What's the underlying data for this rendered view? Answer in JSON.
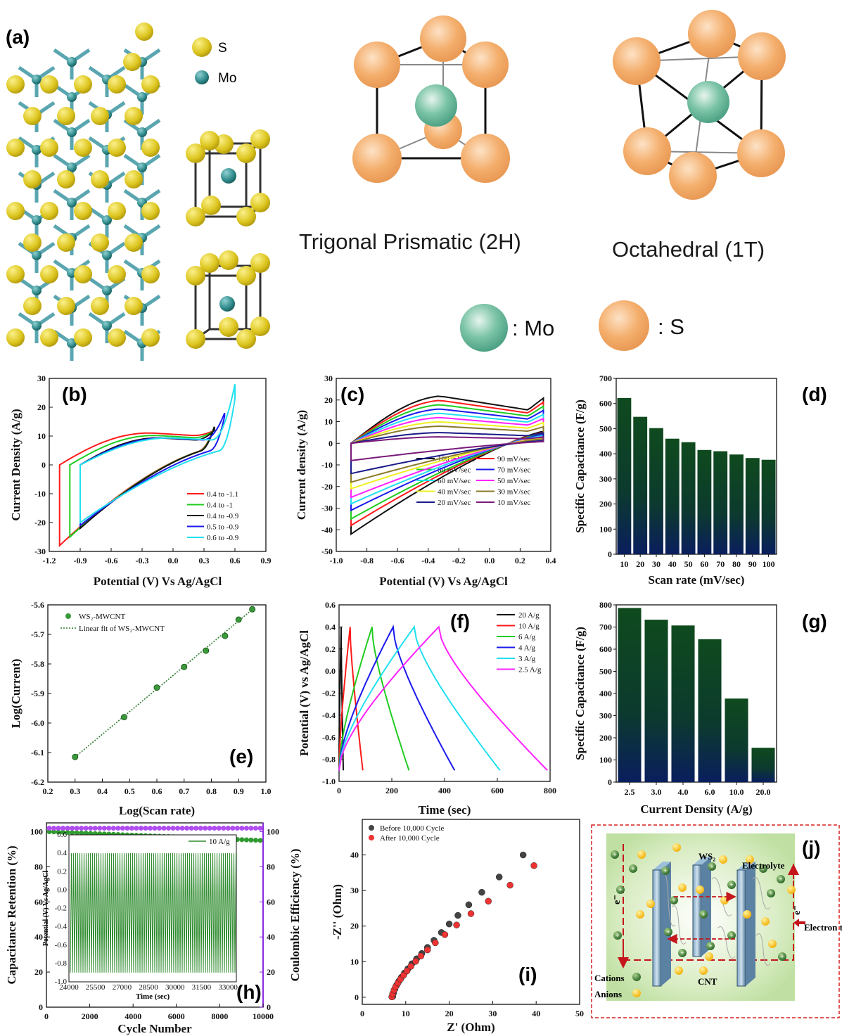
{
  "panel_a": {
    "tag": "(a)",
    "legend_s": "S",
    "legend_mo": "Mo",
    "trigonal_label": "Trigonal Prismatic (2H)",
    "octahedral_label": "Octahedral (1T)",
    "key_mo": ": Mo",
    "key_s": ": S",
    "colors": {
      "s_yellow": "#e2cf2a",
      "mo_teal": "#2f8a8a",
      "s_orange": "#f2ab68",
      "mo_green": "#5fb69a"
    }
  },
  "chart_data": [
    {
      "id": "b",
      "tag": "(b)",
      "type": "line",
      "xlabel": "Potential (V) Vs Ag/AgCl",
      "ylabel": "Current Density (A/g)",
      "xlim": [
        -1.2,
        0.9
      ],
      "ylim": [
        -30,
        30
      ],
      "xticks": [
        "-1.2",
        "-0.9",
        "-0.6",
        "-0.3",
        "0.0",
        "0.3",
        "0.6",
        "0.9"
      ],
      "yticks": [
        "-30",
        "-20",
        "-10",
        "0",
        "10",
        "20",
        "30"
      ],
      "series": [
        {
          "name": "0.4 to -1.1",
          "color": "#ff1a1a",
          "vmin": -1.1,
          "vmax": 0.4,
          "top": 13,
          "bottom": -28,
          "tail": 12
        },
        {
          "name": "0.4 to -1",
          "color": "#22cc22",
          "vmin": -1.0,
          "vmax": 0.4,
          "top": 12,
          "bottom": -25,
          "tail": 12
        },
        {
          "name": "0.4 to -0.9",
          "color": "#111111",
          "vmin": -0.9,
          "vmax": 0.4,
          "top": 11,
          "bottom": -22,
          "tail": 12
        },
        {
          "name": "0.5 to -0.9",
          "color": "#1a1aee",
          "vmin": -0.9,
          "vmax": 0.5,
          "top": 11,
          "bottom": -21,
          "tail": 18
        },
        {
          "name": "0.6 to -0.9",
          "color": "#22e0f0",
          "vmin": -0.9,
          "vmax": 0.6,
          "top": 11,
          "bottom": -20,
          "tail": 28
        }
      ]
    },
    {
      "id": "c",
      "tag": "(c)",
      "type": "line",
      "xlabel": "Potential (V) Vs Ag/AgCl",
      "ylabel": "Current density (A/g)",
      "xlim": [
        -1.0,
        0.45
      ],
      "ylim": [
        -50,
        30
      ],
      "xticks": [
        "-1.0",
        "-0.8",
        "-0.6",
        "-0.4",
        "-0.2",
        "0.0",
        "0.2",
        "0.4"
      ],
      "yticks": [
        "-50",
        "-40",
        "-30",
        "-20",
        "-10",
        "0",
        "10",
        "20",
        "30"
      ],
      "series": [
        {
          "name": "100 mV/sec",
          "color": "#111111",
          "top": 22,
          "bottom": -42
        },
        {
          "name": "90 mV/sec",
          "color": "#ff1a1a",
          "top": 20,
          "bottom": -38
        },
        {
          "name": "80 mV/sec",
          "color": "#22cc22",
          "top": 18,
          "bottom": -35
        },
        {
          "name": "70 mV/sec",
          "color": "#1a1aee",
          "top": 16,
          "bottom": -31
        },
        {
          "name": "60 mV/sec",
          "color": "#22e0f0",
          "top": 14,
          "bottom": -28
        },
        {
          "name": "50 mV/sec",
          "color": "#ff22ff",
          "top": 12,
          "bottom": -25
        },
        {
          "name": "40 mV/sec",
          "color": "#f0f020",
          "top": 10,
          "bottom": -21
        },
        {
          "name": "30 mV/sec",
          "color": "#8a7a2a",
          "top": 8,
          "bottom": -18
        },
        {
          "name": "20 mV/sec",
          "color": "#1a1a88",
          "top": 5,
          "bottom": -14
        },
        {
          "name": "10 mV/sec",
          "color": "#7a1a7a",
          "top": 3,
          "bottom": -8
        }
      ]
    },
    {
      "id": "d",
      "tag": "(d)",
      "type": "bar",
      "xlabel": "Scan rate (mV/sec)",
      "ylabel": "Specific Capacitance (F/g)",
      "ylim": [
        0,
        700
      ],
      "yticks": [
        "0",
        "100",
        "200",
        "300",
        "400",
        "500",
        "600",
        "700"
      ],
      "categories": [
        "10",
        "20",
        "30",
        "40",
        "50",
        "60",
        "70",
        "80",
        "90",
        "100"
      ],
      "values": [
        622,
        547,
        502,
        460,
        446,
        415,
        410,
        397,
        383,
        376
      ]
    },
    {
      "id": "e",
      "tag": "(e)",
      "type": "scatter",
      "xlabel": "Log(Scan rate)",
      "ylabel": "Log(Current)",
      "xlim": [
        0.2,
        1.0
      ],
      "ylim": [
        -6.2,
        -5.6
      ],
      "xticks": [
        "0.2",
        "0.3",
        "0.4",
        "0.5",
        "0.6",
        "0.7",
        "0.8",
        "0.9",
        "1.0"
      ],
      "yticks": [
        "-6.2",
        "-6.1",
        "-6.0",
        "-5.9",
        "-5.8",
        "-5.7",
        "-5.6"
      ],
      "legend": [
        "WS₂-MWCNT",
        "Linear fit of WS₂-MWCNT"
      ],
      "x": [
        0.3,
        0.48,
        0.6,
        0.7,
        0.78,
        0.85,
        0.9,
        0.95
      ],
      "y": [
        -6.115,
        -5.98,
        -5.88,
        -5.81,
        -5.755,
        -5.705,
        -5.65,
        -5.615
      ]
    },
    {
      "id": "f",
      "tag": "(f)",
      "type": "line",
      "xlabel": "Time (sec)",
      "ylabel": "Potential (V) vs Ag/AgCl",
      "xlim": [
        0,
        800
      ],
      "ylim": [
        -1.0,
        0.6
      ],
      "xticks": [
        "0",
        "200",
        "400",
        "600",
        "800"
      ],
      "yticks": [
        "-1.0",
        "-0.8",
        "-0.6",
        "-0.4",
        "-0.2",
        "0.0",
        "0.2",
        "0.4",
        "0.6"
      ],
      "series": [
        {
          "name": "20 A/g",
          "color": "#111111",
          "peak": 8,
          "end": 16
        },
        {
          "name": "10 A/g",
          "color": "#ff1a1a",
          "peak": 42,
          "end": 90
        },
        {
          "name": "6 A/g",
          "color": "#22cc22",
          "peak": 125,
          "end": 265
        },
        {
          "name": "4 A/g",
          "color": "#1a1aee",
          "peak": 205,
          "end": 438
        },
        {
          "name": "3 A/g",
          "color": "#22e0f0",
          "peak": 285,
          "end": 610
        },
        {
          "name": "2.5 A/g",
          "color": "#ff22ff",
          "peak": 378,
          "end": 790
        }
      ]
    },
    {
      "id": "g",
      "tag": "(g)",
      "type": "bar",
      "xlabel": "Current Density (A/g)",
      "ylabel": "Specific Capacitance (F/g)",
      "ylim": [
        0,
        800
      ],
      "yticks": [
        "0",
        "100",
        "200",
        "300",
        "400",
        "500",
        "600",
        "700",
        "800"
      ],
      "categories": [
        "2.5",
        "3.0",
        "4.0",
        "6.0",
        "10.0",
        "20.0"
      ],
      "values": [
        786,
        733,
        707,
        645,
        377,
        155
      ]
    },
    {
      "id": "h",
      "tag": "(h)",
      "type": "scatter",
      "xlabel": "Cycle Number",
      "ylabel": "Capacitance Retention (%)",
      "ylabel_right": "Coulombic Efficiency (%)",
      "xlim": [
        0,
        10000
      ],
      "ylim": [
        0,
        105
      ],
      "xticks": [
        "0",
        "2000",
        "4000",
        "6000",
        "8000",
        "10000"
      ],
      "yticks": [
        "0",
        "20",
        "40",
        "60",
        "80",
        "100"
      ],
      "yticks_right": [
        "0",
        "20",
        "40",
        "60",
        "80",
        "100"
      ],
      "retention_start": 100,
      "retention_end": 95,
      "efficiency": 100,
      "inset": {
        "xlabel": "Time (sec)",
        "ylabel": "Potential (V) Vs Ag/AgCl",
        "legend": "10 A/g",
        "xlim": [
          24000,
          33500
        ],
        "ylim": [
          -1.0,
          0.6
        ],
        "xticks": [
          "24000",
          "25500",
          "27000",
          "28500",
          "30000",
          "31500",
          "33000"
        ],
        "yticks": [
          "-1.0",
          "-0.8",
          "-0.6",
          "-0.4",
          "-0.2",
          "0.0",
          "0.2",
          "0.4",
          "0.6"
        ]
      }
    },
    {
      "id": "i",
      "tag": "(i)",
      "type": "scatter",
      "xlabel": "Z' (Ohm)",
      "ylabel": "-Z'' (Ohm)",
      "xlim": [
        0,
        50
      ],
      "ylim": [
        -2,
        50
      ],
      "xticks": [
        "0",
        "10",
        "20",
        "30",
        "40",
        "50"
      ],
      "yticks": [
        "0",
        "10",
        "20",
        "30",
        "40"
      ],
      "series": [
        {
          "name": "Before 10,000 Cycle",
          "color": "#444444",
          "x": [
            7.0,
            7.2,
            7.5,
            7.9,
            8.4,
            9.0,
            9.7,
            10.5,
            11.4,
            12.5,
            13.7,
            15.0,
            16.5,
            18.2,
            20.0,
            22.0,
            24.5,
            27.5,
            31.5,
            37.0
          ],
          "y": [
            0.2,
            1.2,
            2.3,
            3.4,
            4.5,
            5.6,
            6.8,
            8.0,
            9.4,
            10.8,
            12.3,
            14.0,
            16.0,
            18.2,
            20.6,
            23.0,
            26.0,
            29.5,
            33.8,
            40.0
          ]
        },
        {
          "name": "After 10,000 Cycle",
          "color": "#ee3333",
          "x": [
            6.8,
            7.0,
            7.3,
            7.7,
            8.2,
            8.8,
            9.5,
            10.3,
            11.2,
            12.3,
            13.5,
            15.0,
            16.8,
            19.0,
            21.7,
            25.0,
            29.0,
            34.0,
            39.5
          ],
          "y": [
            0.1,
            1.0,
            2.0,
            3.0,
            4.0,
            5.1,
            6.2,
            7.4,
            8.7,
            10.1,
            11.6,
            13.3,
            15.3,
            17.6,
            20.3,
            23.5,
            27.0,
            31.5,
            37.0
          ]
        }
      ]
    }
  ],
  "panel_j": {
    "tag": "(j)",
    "ws2": "WS₂",
    "electrolyte": "Electrolyte",
    "cnt": "CNT",
    "cations": "Cations",
    "anions": "Anions",
    "electron_transport": "Electron transpor",
    "e_left": "e⁻",
    "e_right": "e⁻"
  }
}
